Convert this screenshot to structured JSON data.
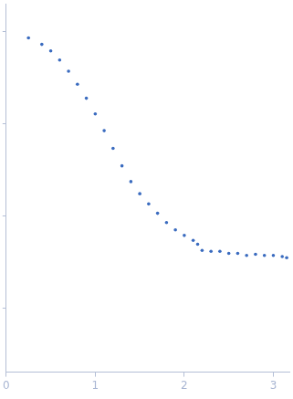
{
  "chart_data": {
    "type": "scatter",
    "x": [
      0.25,
      0.4,
      0.5,
      0.6,
      0.7,
      0.8,
      0.9,
      1.0,
      1.1,
      1.2,
      1.3,
      1.4,
      1.5,
      1.6,
      1.7,
      1.8,
      1.9,
      2.0,
      2.1,
      2.15,
      2.2,
      2.3,
      2.4,
      2.5,
      2.6,
      2.7,
      2.8,
      2.9,
      3.0,
      3.1,
      3.15
    ],
    "values": [
      0.85,
      0.723,
      0.615,
      0.488,
      0.369,
      0.267,
      0.188,
      0.127,
      0.0836,
      0.0538,
      0.0347,
      0.0234,
      0.0173,
      0.0134,
      0.0106,
      0.0084,
      0.007,
      0.0061,
      0.0054,
      0.0049,
      0.0042,
      0.0041,
      0.0041,
      0.0039,
      0.0039,
      0.0037,
      0.0038,
      0.0037,
      0.0037,
      0.0036,
      0.0035
    ],
    "color": "#3a6bbf",
    "marker": "circle",
    "xlim": [
      0,
      3.18
    ],
    "xticks": [
      0,
      1,
      2,
      3
    ],
    "ylim": [
      0.0002,
      2
    ],
    "yticks": [
      0.001,
      0.01,
      0.1,
      1
    ],
    "log": "y",
    "grid": false,
    "tick_labels": "x"
  }
}
